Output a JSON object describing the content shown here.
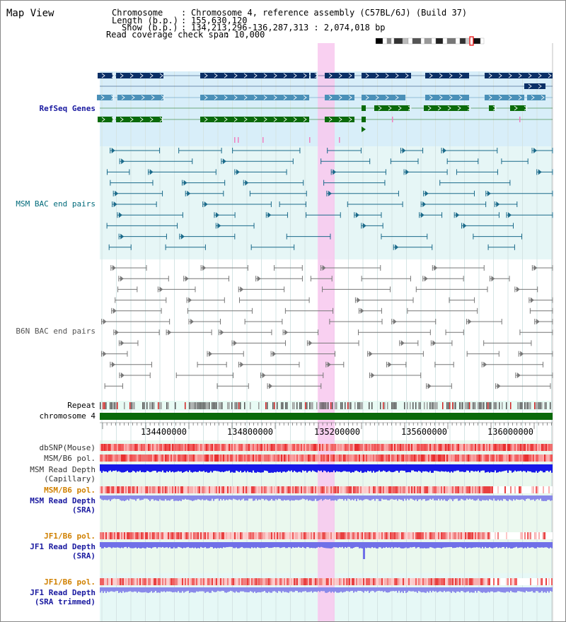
{
  "header": {
    "title": "Map View",
    "rows": [
      {
        "key": "Chromosome",
        "value": "Chromosome 4, reference assembly (C57BL/6J) (Build 37)"
      },
      {
        "key": "Length (b.p.)",
        "value": "155,630,120"
      },
      {
        "key": "Show (b.p.)",
        "value": "134,213,296-136,287,313 : 2,074,018 bp"
      },
      {
        "key": "Read coverage check span",
        "value": "10,000"
      }
    ]
  },
  "tracks": {
    "refseq": "RefSeq Genes",
    "msm_bac": "MSM BAC end pairs",
    "b6n_bac": "B6N BAC end pairs",
    "repeat": "Repeat",
    "chromosome": "chromosome 4",
    "dbsnp": "dbSNP(Mouse)",
    "msm_b6_pol_1": "MSM/B6 pol.",
    "msm_depth_cap_1": "MSM Read Depth",
    "msm_depth_cap_2": "(Capillary)",
    "msm_b6_pol_2": "MSM/B6 pol.",
    "msm_depth_sra_1": "MSM Read Depth",
    "msm_depth_sra_2": "(SRA)",
    "jf1_b6_pol_1": "JF1/B6 pol.",
    "jf1_depth_sra_1": "JF1 Read Depth",
    "jf1_depth_sra_2": "(SRA)",
    "jf1_b6_pol_2": "JF1/B6 pol.",
    "jf1_depth_trim_1": "JF1 Read Depth",
    "jf1_depth_trim_2": "(SRA trimmed)"
  },
  "axis": {
    "ticks": [
      "134400000",
      "134800000",
      "135200000",
      "135600000",
      "136000000"
    ]
  },
  "colors": {
    "refseq_dark": "#0a2f66",
    "refseq_mid": "#4a90b8",
    "refseq_green": "#0a6a0a",
    "msm_bac": "#1a6a8a",
    "b6n_bac": "#777777",
    "highlight": "#f8c8ee",
    "label_blue": "#1a1aa0",
    "label_orange": "#d08000",
    "label_teal": "#006a7a"
  }
}
